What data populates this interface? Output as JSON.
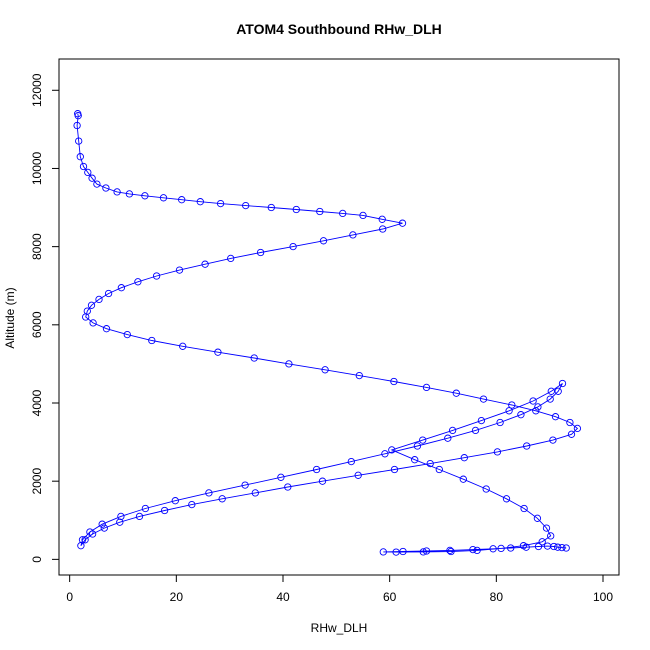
{
  "chart_data": {
    "type": "scatter",
    "title": "ATOM4 Southbound RHw_DLH",
    "xlabel": "RHw_DLH",
    "ylabel": "Altitude (m)",
    "xlim": [
      -2,
      103
    ],
    "ylim": [
      -400,
      12800
    ],
    "x_ticks": [
      0,
      20,
      40,
      60,
      80,
      100
    ],
    "x_tick_labels": [
      "0",
      "20",
      "40",
      "60",
      "80",
      "100"
    ],
    "y_ticks": [
      0,
      2000,
      4000,
      6000,
      8000,
      10000,
      12000
    ],
    "y_tick_labels": [
      "0",
      "2000",
      "4000",
      "6000",
      "8000",
      "10000",
      "12000"
    ],
    "grid": false,
    "series": [
      {
        "color": "#0000ff",
        "marker": "open-circle",
        "connected": true,
        "x": [
          1.5,
          1.6,
          1.4,
          1.7,
          2.0,
          2.6,
          3.4,
          4.2,
          5.1,
          6.8,
          8.9,
          11.2,
          14.1,
          17.6,
          21.0,
          24.5,
          28.3,
          33.0,
          37.8,
          42.5,
          46.9,
          51.2,
          55.0,
          58.6,
          62.4,
          58.7,
          53.1,
          47.6,
          41.9,
          35.8,
          30.2,
          25.4,
          20.6,
          16.3,
          12.8,
          9.7,
          7.3,
          5.5,
          4.1,
          3.3,
          3.0,
          4.4,
          6.9,
          10.8,
          15.4,
          21.2,
          27.8,
          34.6,
          41.1,
          47.9,
          54.3,
          60.8,
          66.9,
          72.5,
          77.6,
          82.9,
          87.4,
          91.1,
          93.8,
          95.2,
          94.1,
          90.6,
          85.7,
          80.2,
          74.0,
          67.6,
          60.9,
          54.1,
          47.4,
          40.9,
          34.8,
          28.6,
          22.9,
          17.8,
          13.1,
          9.4,
          6.5,
          4.3,
          2.9,
          2.1,
          2.4,
          3.8,
          6.1,
          9.6,
          14.2,
          19.8,
          26.1,
          32.9,
          39.6,
          46.3,
          52.8,
          59.1,
          65.2,
          70.9,
          76.1,
          80.7,
          84.6,
          87.8,
          90.1,
          91.6,
          92.4,
          90.3,
          86.9,
          82.4,
          77.2,
          71.8,
          66.2,
          60.4,
          64.7,
          69.3,
          73.8,
          78.1,
          81.9,
          85.2,
          87.7,
          89.4,
          90.2,
          88.6,
          85.1,
          80.9,
          76.4,
          71.5,
          66.3,
          61.2,
          58.8,
          62.5,
          66.9,
          71.3,
          75.6,
          79.4,
          82.7,
          85.6,
          87.9,
          89.6,
          90.8,
          91.5,
          92.3,
          93.1
        ],
        "y": [
          11400,
          11350,
          11100,
          10700,
          10300,
          10050,
          9900,
          9750,
          9600,
          9500,
          9400,
          9350,
          9300,
          9250,
          9200,
          9150,
          9100,
          9050,
          9000,
          8950,
          8900,
          8850,
          8800,
          8700,
          8600,
          8450,
          8300,
          8150,
          8000,
          7850,
          7700,
          7550,
          7400,
          7250,
          7100,
          6950,
          6800,
          6650,
          6500,
          6350,
          6200,
          6050,
          5900,
          5750,
          5600,
          5450,
          5300,
          5150,
          5000,
          4850,
          4700,
          4550,
          4400,
          4250,
          4100,
          3950,
          3800,
          3650,
          3500,
          3350,
          3200,
          3050,
          2900,
          2750,
          2600,
          2450,
          2300,
          2150,
          2000,
          1850,
          1700,
          1550,
          1400,
          1250,
          1100,
          950,
          800,
          650,
          500,
          350,
          500,
          700,
          900,
          1100,
          1300,
          1500,
          1700,
          1900,
          2100,
          2300,
          2500,
          2700,
          2900,
          3100,
          3300,
          3500,
          3700,
          3900,
          4100,
          4300,
          4500,
          4300,
          4050,
          3800,
          3550,
          3300,
          3050,
          2800,
          2550,
          2300,
          2050,
          1800,
          1550,
          1300,
          1050,
          800,
          600,
          450,
          350,
          280,
          230,
          200,
          190,
          185,
          190,
          200,
          215,
          230,
          250,
          270,
          290,
          310,
          330,
          340,
          330,
          310,
          300,
          290
        ]
      }
    ]
  }
}
